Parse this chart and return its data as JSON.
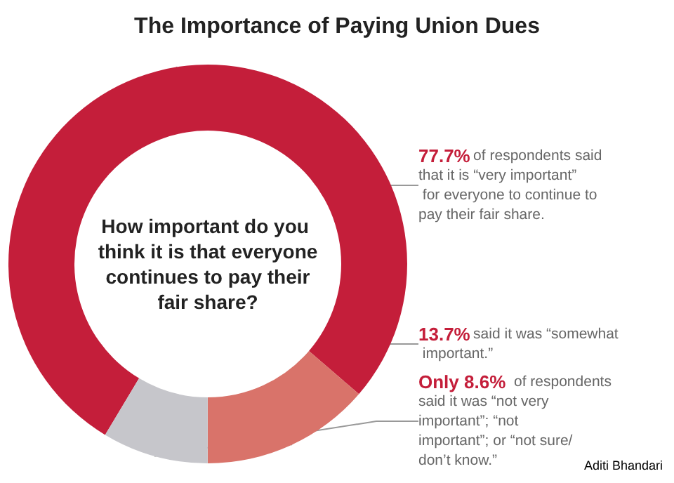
{
  "chart_data": {
    "type": "donut",
    "title": "The Importance of Paying Union Dues",
    "categories": [
      "77.7% of respondents said that it is “very important” for everyone to continue to pay their fair share.",
      "13.7% said it was “somewhat important.”",
      "Only 8.6% of respondents said it was “not very important”; “not important”; or “not sure/don’t know.”"
    ],
    "values": [
      77.7,
      13.7,
      8.6
    ],
    "colors": [
      "#c41e3a",
      "#d9736a",
      "#c6c6cb"
    ],
    "annotations": [
      "How important do you think it is that everyone continues to pay their fair share?",
      "Aditi Bhandari"
    ],
    "legend": false
  }
}
